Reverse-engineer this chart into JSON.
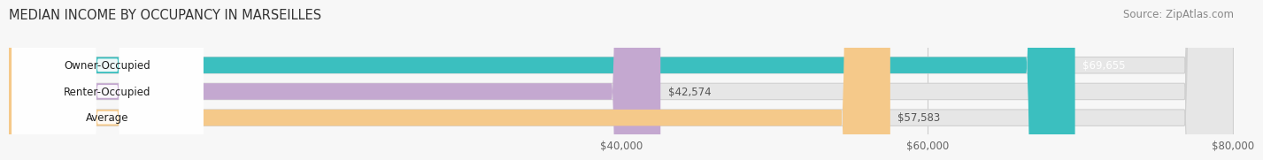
{
  "title": "MEDIAN INCOME BY OCCUPANCY IN MARSEILLES",
  "source": "Source: ZipAtlas.com",
  "categories": [
    "Owner-Occupied",
    "Renter-Occupied",
    "Average"
  ],
  "values": [
    69655,
    42574,
    57583
  ],
  "bar_colors": [
    "#3bbfbf",
    "#c4a8d0",
    "#f5c98a"
  ],
  "bar_bg_color": "#e6e6e6",
  "value_labels": [
    "$69,655",
    "$42,574",
    "$57,583"
  ],
  "xlim": [
    0,
    80000
  ],
  "xmin": 0,
  "xmax": 80000,
  "xticks": [
    40000,
    60000,
    80000
  ],
  "xtick_labels": [
    "$40,000",
    "$60,000",
    "$80,000"
  ],
  "grid_color": "#cccccc",
  "title_fontsize": 10.5,
  "source_fontsize": 8.5,
  "bar_height": 0.62,
  "bar_gap": 0.38,
  "fig_bg": "#f7f7f7",
  "label_pill_color": "#ffffff",
  "label_fontsize": 8.5,
  "value_fontsize": 8.5
}
